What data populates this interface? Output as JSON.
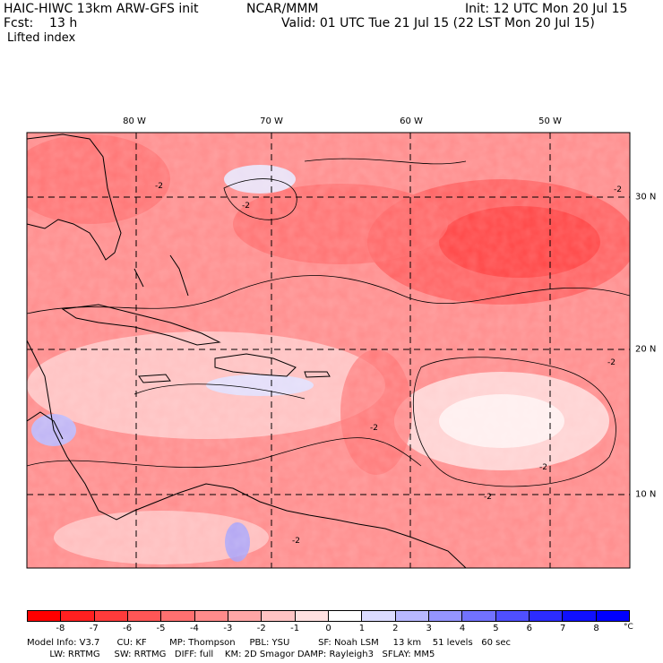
{
  "header": {
    "model": "HAIC-HIWC 13km ARW-GFS init",
    "org": "NCAR/MMM",
    "init": "Init: 12 UTC Mon 20 Jul 15",
    "fcst": "Fcst:    13 h",
    "valid": "Valid: 01 UTC Tue 21 Jul 15 (22 LST Mon 20 Jul 15)",
    "field": "Lifted index"
  },
  "map": {
    "lon_labels": [
      "80 W",
      "70 W",
      "60 W",
      "50 W"
    ],
    "lat_labels": [
      "30 N",
      "20 N",
      "10 N"
    ],
    "contour_labels": [
      "-2",
      "-2",
      "-2",
      "-2",
      "-2",
      "-2",
      "-2",
      "-2"
    ]
  },
  "colorbar": {
    "labels": [
      "-8",
      "-7",
      "-6",
      "-5",
      "-4",
      "-3",
      "-2",
      "-1",
      "0",
      "1",
      "2",
      "3",
      "4",
      "5",
      "6",
      "7",
      "8"
    ],
    "unit": "°C",
    "colors": [
      "#ff0000",
      "#ff2020",
      "#ff3b3b",
      "#ff5656",
      "#ff7070",
      "#ff8b8b",
      "#ffa6a6",
      "#ffc4c4",
      "#ffe0e0",
      "#ffffff",
      "#dcdcff",
      "#b8b8ff",
      "#9595ff",
      "#7272ff",
      "#4f4fff",
      "#2c2cff",
      "#1010ff",
      "#0000ff"
    ]
  },
  "footer": {
    "line1": "Model Info: V3.7      CU: KF        MP: Thompson     PBL: YSU          SF: Noah LSM     13 km    51 levels   60 sec",
    "line2": "        LW: RRTMG     SW: RRTMG   DIFF: full    KM: 2D Smagor DAMP: Rayleigh3   SFLAY: MM5"
  }
}
